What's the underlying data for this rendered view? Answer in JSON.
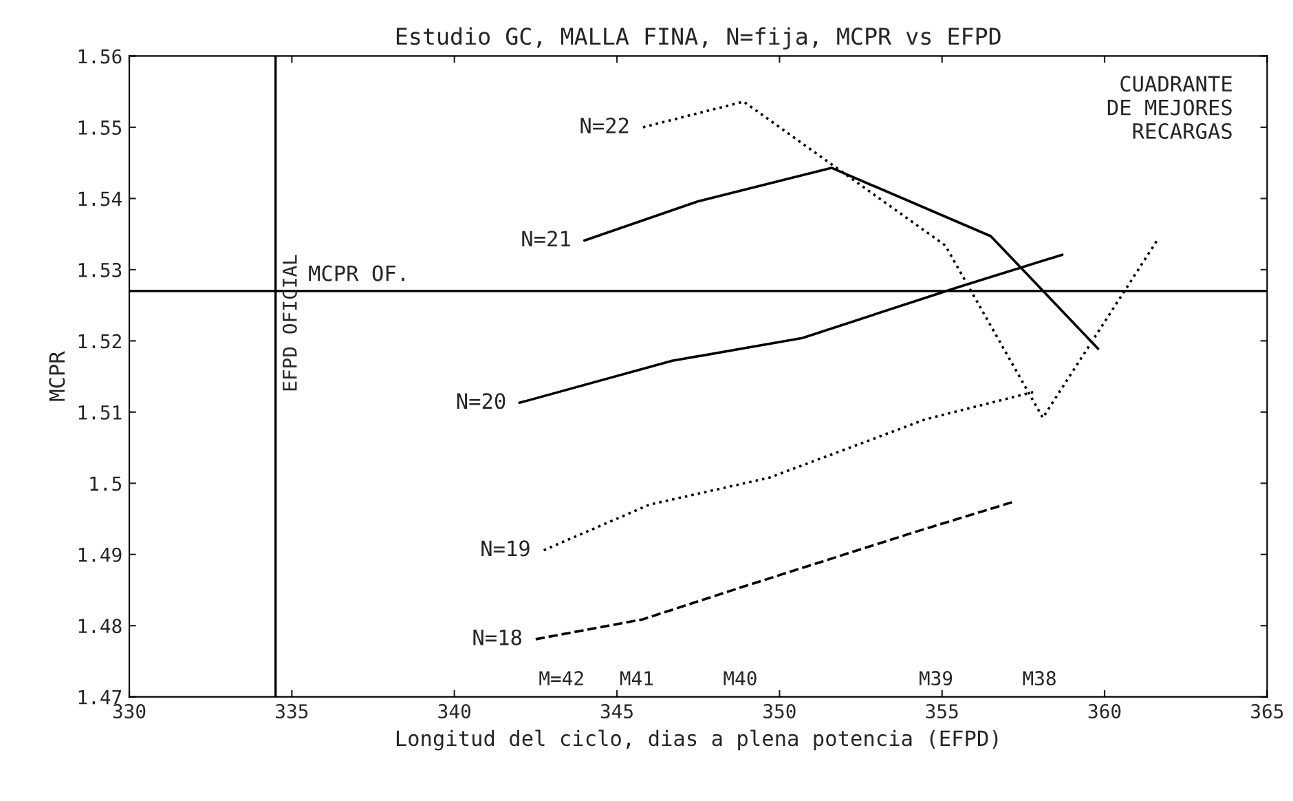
{
  "chart_data": {
    "type": "line",
    "title": "Estudio GC, MALLA FINA, N=fija, MCPR vs EFPD",
    "xlabel": "Longitud del ciclo, dias a plena potencia (EFPD)",
    "ylabel": "MCPR",
    "xlim": [
      330,
      365
    ],
    "xticks": [
      330,
      335,
      340,
      345,
      350,
      355,
      360,
      365
    ],
    "ylim": [
      1.47,
      1.56
    ],
    "yticks": [
      1.47,
      1.48,
      1.49,
      1.5,
      1.51,
      1.52,
      1.53,
      1.54,
      1.55,
      1.56
    ],
    "series": [
      {
        "name": "N=22",
        "color": "#000000",
        "line_style": "dotted",
        "x": [
          345.8,
          348.9,
          355.1,
          358.1,
          361.6
        ],
        "values": [
          1.55,
          1.5536,
          1.5334,
          1.5092,
          1.534
        ]
      },
      {
        "name": "N=21",
        "color": "#000000",
        "line_style": "solid",
        "x": [
          344.0,
          347.5,
          351.6,
          356.5,
          359.8
        ],
        "values": [
          1.5341,
          1.5396,
          1.5443,
          1.5347,
          1.5189
        ]
      },
      {
        "name": "N=20",
        "color": "#000000",
        "line_style": "solid",
        "x": [
          342.0,
          346.7,
          350.7,
          355.4,
          358.7
        ],
        "values": [
          1.5113,
          1.5172,
          1.5204,
          1.5274,
          1.5321
        ]
      },
      {
        "name": "N=19",
        "color": "#000000",
        "line_style": "dotted",
        "x": [
          342.75,
          346.0,
          349.7,
          354.5,
          357.8
        ],
        "values": [
          1.4906,
          1.497,
          1.5008,
          1.509,
          1.5128
        ]
      },
      {
        "name": "N=18",
        "color": "#000000",
        "line_style": "dashed",
        "x": [
          342.5,
          345.8,
          348.9,
          354.2,
          357.2
        ],
        "values": [
          1.4781,
          1.4809,
          1.4855,
          1.4932,
          1.4974
        ]
      }
    ],
    "ref_lines": [
      {
        "axis": "y",
        "value": 1.527,
        "label": "MCPR OF.",
        "color": "#000000"
      },
      {
        "axis": "x",
        "value": 334.5,
        "label": "EFPD OFICIAL",
        "color": "#000000"
      }
    ],
    "annotations": [
      "CUADRANTE\nDE MEJORES\nRECARGAS",
      "M=42",
      "M41",
      "M40",
      "M39",
      "M38"
    ],
    "grid": false,
    "legend": false
  }
}
